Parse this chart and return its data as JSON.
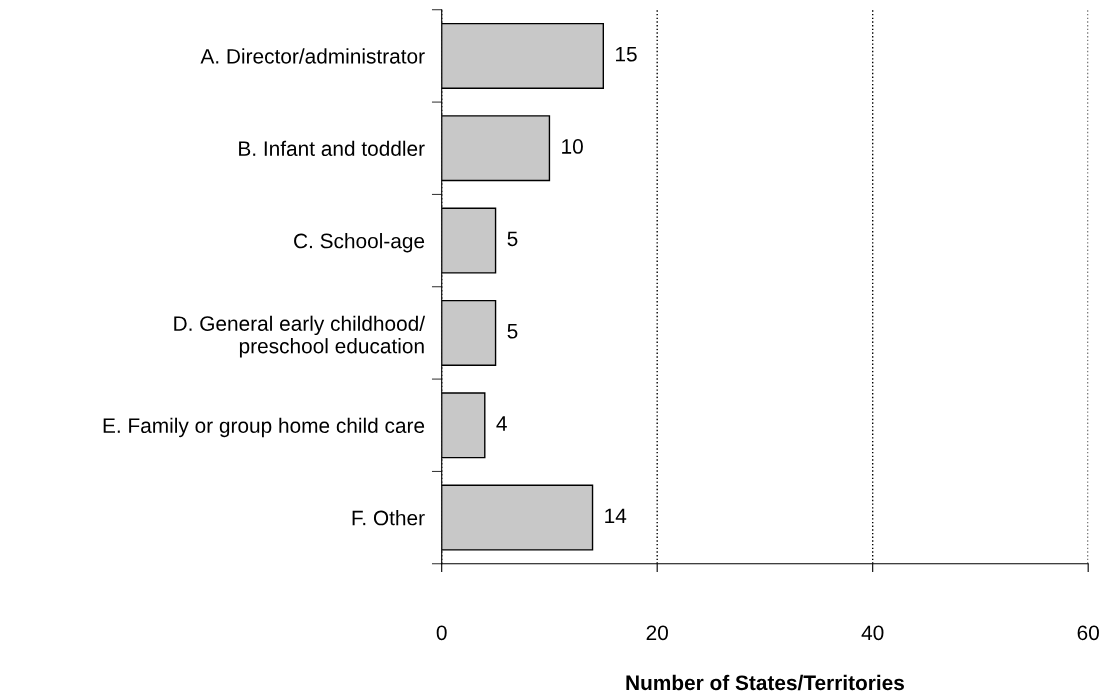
{
  "chart_data": {
    "type": "bar",
    "orientation": "horizontal",
    "categories": [
      "A. Director/administrator",
      "B. Infant and toddler",
      "C. School-age",
      "D. General early childhood/\npreschool education",
      "E. Family or group home child care",
      "F. Other"
    ],
    "values": [
      15,
      10,
      5,
      5,
      4,
      14
    ],
    "color": "#c8c8c8",
    "xlim": [
      0,
      60
    ],
    "xticks": [
      0,
      20,
      40,
      60
    ],
    "xlabel": "Number of States/Territories",
    "grid": "x",
    "data_labels": true
  }
}
